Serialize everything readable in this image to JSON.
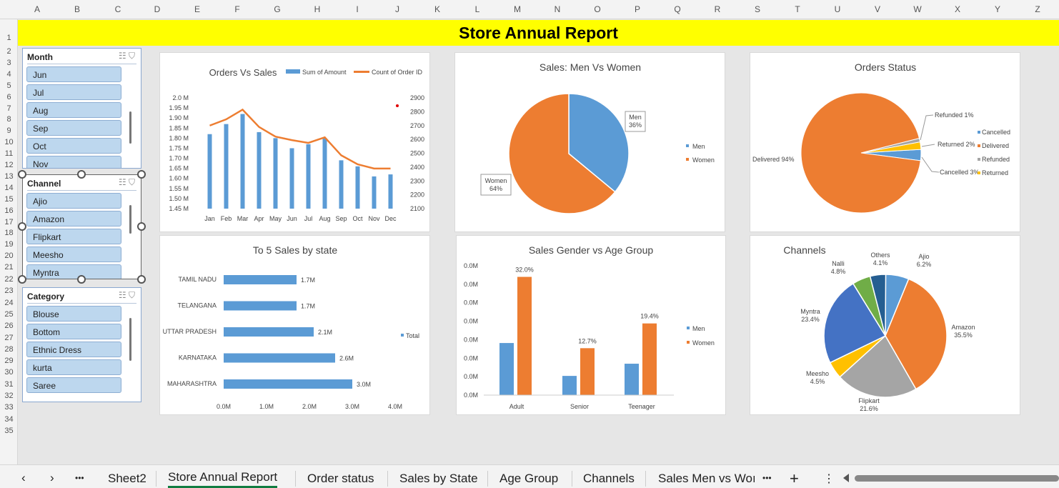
{
  "columns": [
    "A",
    "B",
    "C",
    "D",
    "E",
    "F",
    "G",
    "H",
    "I",
    "J",
    "K",
    "L",
    "M",
    "N",
    "O",
    "P",
    "Q",
    "R",
    "S",
    "T",
    "U",
    "V",
    "W",
    "X",
    "Y",
    "Z"
  ],
  "rows": [
    "1",
    "2",
    "3",
    "4",
    "5",
    "6",
    "7",
    "8",
    "9",
    "10",
    "11",
    "12",
    "13",
    "14",
    "15",
    "16",
    "17",
    "18",
    "19",
    "20",
    "21",
    "22",
    "23",
    "24",
    "25",
    "26",
    "27",
    "28",
    "29",
    "30",
    "31",
    "32",
    "33",
    "34",
    "35"
  ],
  "banner": "Store Annual Report",
  "slicers": [
    {
      "title": "Month",
      "items": [
        "Jun",
        "Jul",
        "Aug",
        "Sep",
        "Oct",
        "Nov"
      ]
    },
    {
      "title": "Channel",
      "items": [
        "Ajio",
        "Amazon",
        "Flipkart",
        "Meesho",
        "Myntra"
      ]
    },
    {
      "title": "Category",
      "items": [
        "Blouse",
        "Bottom",
        "Ethnic Dress",
        "kurta",
        "Saree"
      ]
    }
  ],
  "tabs": {
    "items": [
      "Sheet2",
      "Store Annual Report",
      "Order status",
      "Sales by State",
      "Age Group",
      "Channels",
      "Sales Men vs Woı"
    ],
    "active": "Store Annual Report",
    "more": "•••",
    "add": "+"
  },
  "colors": {
    "blue": "#5b9bd5",
    "orange": "#ed7d31",
    "gray": "#a5a5a5",
    "yellow": "#ffc000",
    "darkblue": "#4472c4",
    "green": "#70ad47",
    "navy": "#255e91",
    "banner": "#ffff00"
  },
  "chart_data": [
    {
      "type": "bar",
      "title": "Orders Vs Sales",
      "categories": [
        "Jan",
        "Feb",
        "Mar",
        "Apr",
        "May",
        "Jun",
        "Jul",
        "Aug",
        "Sep",
        "Oct",
        "Nov",
        "Dec"
      ],
      "series": [
        {
          "name": "Sum of Amount",
          "type": "bar",
          "values": [
            1.82,
            1.87,
            1.92,
            1.83,
            1.8,
            1.75,
            1.77,
            1.8,
            1.69,
            1.66,
            1.61,
            1.62
          ]
        },
        {
          "name": "Count of Order ID",
          "type": "line",
          "axis": "secondary",
          "values": [
            2700,
            2745,
            2815,
            2690,
            2620,
            2595,
            2575,
            2615,
            2485,
            2420,
            2390,
            2390
          ]
        }
      ],
      "y_ticks": [
        "2.0 M",
        "1.95 M",
        "1.90 M",
        "1.85 M",
        "1.80 M",
        "1.75 M",
        "1.70 M",
        "1.65 M",
        "1.60 M",
        "1.55 M",
        "1.50 M",
        "1.45 M"
      ],
      "y2_ticks": [
        "2900",
        "2800",
        "2700",
        "2600",
        "2500",
        "2400",
        "2300",
        "2200",
        "2100"
      ],
      "ylim": [
        1.45,
        2.0
      ],
      "y2lim": [
        2100,
        2900
      ],
      "legend": "top-right"
    },
    {
      "type": "pie",
      "title": "Sales: Men Vs Women",
      "labels": [
        "Men",
        "Women"
      ],
      "values": [
        36,
        64
      ],
      "data_labels": [
        "Men\n36%",
        "Women\n64%"
      ],
      "legend": "right"
    },
    {
      "type": "pie",
      "title": "Orders Status",
      "labels": [
        "Cancelled",
        "Delivered",
        "Refunded",
        "Returned"
      ],
      "values": [
        3,
        94,
        1,
        2
      ],
      "data_labels": [
        "Cancelled 3%",
        "Delivered 94%",
        "Refunded 1%",
        "Returned 2%"
      ],
      "legend": "right"
    },
    {
      "type": "bar",
      "orientation": "horizontal",
      "title": "To 5 Sales by state",
      "categories": [
        "TAMIL NADU",
        "TELANGANA",
        "UTTAR PRADESH",
        "KARNATAKA",
        "MAHARASHTRA"
      ],
      "series": [
        {
          "name": "Total",
          "values": [
            1.7,
            1.7,
            2.1,
            2.6,
            3.0
          ]
        }
      ],
      "data_labels": [
        "1.7M",
        "1.7M",
        "2.1M",
        "2.6M",
        "3.0M"
      ],
      "x_ticks": [
        "0.0M",
        "1.0M",
        "2.0M",
        "3.0M",
        "4.0M"
      ],
      "xlim": [
        0,
        4
      ],
      "legend": "right"
    },
    {
      "type": "bar",
      "title": "Sales Gender vs Age Group",
      "categories": [
        "Adult",
        "Senior",
        "Teenager"
      ],
      "series": [
        {
          "name": "Men",
          "values": [
            14.1,
            5.2,
            8.5
          ]
        },
        {
          "name": "Women",
          "values": [
            32.0,
            12.7,
            19.4
          ]
        }
      ],
      "data_labels": [
        "32.0%",
        "12.7%",
        "19.4%"
      ],
      "y_ticks": [
        "0.0M",
        "0.0M",
        "0.0M",
        "0.0M",
        "0.0M",
        "0.0M",
        "0.0M",
        "0.0M"
      ],
      "ylim": [
        0,
        35
      ],
      "legend": "right"
    },
    {
      "type": "pie",
      "title": "Channels",
      "labels": [
        "Ajio",
        "Amazon",
        "Flipkart",
        "Meesho",
        "Myntra",
        "Nalli",
        "Others"
      ],
      "values": [
        6.2,
        35.5,
        21.6,
        4.5,
        23.4,
        4.8,
        4.1
      ],
      "data_labels": [
        "Ajio\n6.2%",
        "Amazon\n35.5%",
        "Flipkart\n21.6%",
        "Meesho\n4.5%",
        "Myntra\n23.4%",
        "Nalli\n4.8%",
        "Others\n4.1%"
      ]
    }
  ]
}
